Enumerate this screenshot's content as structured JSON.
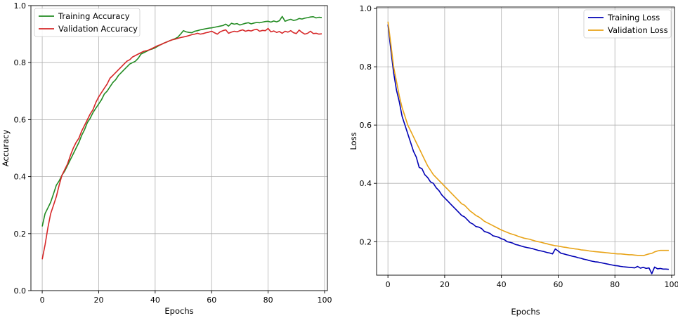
{
  "chart_data": [
    {
      "type": "line",
      "xlabel": "Epochs",
      "ylabel": "Accuracy",
      "xlim": [
        -4,
        101
      ],
      "ylim": [
        0.0,
        1.0
      ],
      "xticks": [
        0,
        20,
        40,
        60,
        80,
        100
      ],
      "yticks": [
        0.0,
        0.2,
        0.4,
        0.6,
        0.8,
        1.0
      ],
      "grid": true,
      "legend_position": "top-left",
      "x": [
        0,
        1,
        2,
        3,
        4,
        5,
        6,
        7,
        8,
        9,
        10,
        11,
        12,
        13,
        14,
        15,
        16,
        17,
        18,
        19,
        20,
        21,
        22,
        23,
        24,
        25,
        26,
        27,
        28,
        29,
        30,
        31,
        32,
        33,
        34,
        35,
        36,
        37,
        38,
        39,
        40,
        41,
        42,
        43,
        44,
        45,
        46,
        47,
        48,
        49,
        50,
        51,
        52,
        53,
        54,
        55,
        56,
        57,
        58,
        59,
        60,
        61,
        62,
        63,
        64,
        65,
        66,
        67,
        68,
        69,
        70,
        71,
        72,
        73,
        74,
        75,
        76,
        77,
        78,
        79,
        80,
        81,
        82,
        83,
        84,
        85,
        86,
        87,
        88,
        89,
        90,
        91,
        92,
        93,
        94,
        95,
        96,
        97,
        98,
        99
      ],
      "series": [
        {
          "name": "Training Accuracy",
          "color": "#228b22",
          "values": [
            0.225,
            0.27,
            0.29,
            0.31,
            0.34,
            0.37,
            0.385,
            0.405,
            0.42,
            0.44,
            0.46,
            0.48,
            0.5,
            0.52,
            0.545,
            0.565,
            0.59,
            0.605,
            0.625,
            0.64,
            0.655,
            0.67,
            0.69,
            0.7,
            0.715,
            0.73,
            0.74,
            0.755,
            0.765,
            0.775,
            0.785,
            0.795,
            0.8,
            0.805,
            0.815,
            0.83,
            0.835,
            0.84,
            0.845,
            0.848,
            0.852,
            0.858,
            0.863,
            0.868,
            0.872,
            0.876,
            0.88,
            0.884,
            0.889,
            0.9,
            0.912,
            0.908,
            0.906,
            0.905,
            0.91,
            0.912,
            0.915,
            0.917,
            0.919,
            0.921,
            0.922,
            0.924,
            0.926,
            0.928,
            0.93,
            0.935,
            0.928,
            0.938,
            0.935,
            0.937,
            0.932,
            0.935,
            0.938,
            0.94,
            0.936,
            0.939,
            0.941,
            0.94,
            0.942,
            0.944,
            0.945,
            0.942,
            0.946,
            0.943,
            0.947,
            0.962,
            0.945,
            0.949,
            0.952,
            0.948,
            0.95,
            0.955,
            0.953,
            0.956,
            0.958,
            0.96,
            0.961,
            0.957,
            0.959,
            0.958
          ]
        },
        {
          "name": "Validation Accuracy",
          "color": "#d62728",
          "values": [
            0.11,
            0.16,
            0.22,
            0.27,
            0.3,
            0.33,
            0.37,
            0.405,
            0.425,
            0.445,
            0.475,
            0.5,
            0.52,
            0.535,
            0.56,
            0.58,
            0.6,
            0.62,
            0.635,
            0.66,
            0.68,
            0.695,
            0.71,
            0.725,
            0.745,
            0.755,
            0.765,
            0.775,
            0.785,
            0.795,
            0.805,
            0.81,
            0.82,
            0.825,
            0.83,
            0.835,
            0.84,
            0.842,
            0.845,
            0.85,
            0.855,
            0.86,
            0.863,
            0.868,
            0.872,
            0.876,
            0.88,
            0.882,
            0.885,
            0.888,
            0.89,
            0.892,
            0.895,
            0.898,
            0.9,
            0.903,
            0.9,
            0.902,
            0.905,
            0.907,
            0.91,
            0.905,
            0.9,
            0.908,
            0.912,
            0.915,
            0.903,
            0.907,
            0.91,
            0.908,
            0.912,
            0.915,
            0.91,
            0.913,
            0.911,
            0.915,
            0.917,
            0.91,
            0.913,
            0.912,
            0.92,
            0.908,
            0.911,
            0.906,
            0.909,
            0.903,
            0.91,
            0.907,
            0.912,
            0.905,
            0.902,
            0.914,
            0.906,
            0.9,
            0.903,
            0.91,
            0.902,
            0.903,
            0.9,
            0.901
          ]
        }
      ]
    },
    {
      "type": "line",
      "xlabel": "Epochs",
      "ylabel": "Loss",
      "xlim": [
        -4,
        101
      ],
      "ylim": [
        0.085,
        1.005
      ],
      "xticks": [
        0,
        20,
        40,
        60,
        80,
        100
      ],
      "yticks": [
        0.2,
        0.4,
        0.6,
        0.8,
        1.0
      ],
      "grid": true,
      "legend_position": "top-right",
      "x": [
        0,
        1,
        2,
        3,
        4,
        5,
        6,
        7,
        8,
        9,
        10,
        11,
        12,
        13,
        14,
        15,
        16,
        17,
        18,
        19,
        20,
        21,
        22,
        23,
        24,
        25,
        26,
        27,
        28,
        29,
        30,
        31,
        32,
        33,
        34,
        35,
        36,
        37,
        38,
        39,
        40,
        41,
        42,
        43,
        44,
        45,
        46,
        47,
        48,
        49,
        50,
        51,
        52,
        53,
        54,
        55,
        56,
        57,
        58,
        59,
        60,
        61,
        62,
        63,
        64,
        65,
        66,
        67,
        68,
        69,
        70,
        71,
        72,
        73,
        74,
        75,
        76,
        77,
        78,
        79,
        80,
        81,
        82,
        83,
        84,
        85,
        86,
        87,
        88,
        89,
        90,
        91,
        92,
        93,
        94,
        95,
        96,
        97,
        98,
        99
      ],
      "series": [
        {
          "name": "Training Loss",
          "color": "#0000b4",
          "values": [
            0.945,
            0.86,
            0.78,
            0.72,
            0.68,
            0.63,
            0.6,
            0.57,
            0.54,
            0.51,
            0.49,
            0.455,
            0.45,
            0.43,
            0.42,
            0.405,
            0.4,
            0.385,
            0.375,
            0.36,
            0.35,
            0.34,
            0.33,
            0.32,
            0.31,
            0.3,
            0.29,
            0.285,
            0.275,
            0.265,
            0.26,
            0.252,
            0.25,
            0.245,
            0.235,
            0.232,
            0.228,
            0.22,
            0.218,
            0.215,
            0.21,
            0.207,
            0.2,
            0.198,
            0.195,
            0.19,
            0.188,
            0.185,
            0.182,
            0.18,
            0.178,
            0.176,
            0.173,
            0.17,
            0.168,
            0.166,
            0.163,
            0.161,
            0.158,
            0.175,
            0.168,
            0.16,
            0.158,
            0.155,
            0.153,
            0.15,
            0.148,
            0.145,
            0.143,
            0.14,
            0.138,
            0.135,
            0.133,
            0.131,
            0.13,
            0.128,
            0.126,
            0.124,
            0.122,
            0.12,
            0.118,
            0.117,
            0.115,
            0.114,
            0.113,
            0.112,
            0.111,
            0.11,
            0.115,
            0.109,
            0.112,
            0.108,
            0.11,
            0.09,
            0.113,
            0.107,
            0.108,
            0.106,
            0.106,
            0.105
          ]
        },
        {
          "name": "Validation Loss",
          "color": "#e8a317",
          "values": [
            0.955,
            0.88,
            0.8,
            0.75,
            0.7,
            0.66,
            0.63,
            0.6,
            0.58,
            0.56,
            0.54,
            0.52,
            0.5,
            0.48,
            0.46,
            0.445,
            0.43,
            0.42,
            0.41,
            0.4,
            0.39,
            0.38,
            0.37,
            0.36,
            0.35,
            0.34,
            0.33,
            0.325,
            0.315,
            0.305,
            0.298,
            0.29,
            0.285,
            0.278,
            0.27,
            0.265,
            0.26,
            0.255,
            0.25,
            0.245,
            0.24,
            0.236,
            0.232,
            0.228,
            0.225,
            0.222,
            0.218,
            0.215,
            0.212,
            0.21,
            0.208,
            0.205,
            0.202,
            0.2,
            0.198,
            0.195,
            0.193,
            0.19,
            0.188,
            0.186,
            0.185,
            0.183,
            0.181,
            0.18,
            0.178,
            0.177,
            0.175,
            0.174,
            0.172,
            0.171,
            0.17,
            0.168,
            0.167,
            0.166,
            0.165,
            0.164,
            0.163,
            0.162,
            0.161,
            0.16,
            0.159,
            0.158,
            0.158,
            0.157,
            0.156,
            0.155,
            0.155,
            0.154,
            0.153,
            0.153,
            0.152,
            0.155,
            0.158,
            0.16,
            0.165,
            0.168,
            0.17,
            0.17,
            0.17,
            0.17
          ]
        }
      ]
    }
  ]
}
